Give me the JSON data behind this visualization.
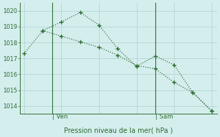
{
  "line1_x": [
    0,
    1,
    2,
    3,
    4,
    5,
    6,
    7,
    8,
    9,
    10
  ],
  "line1_y": [
    1017.3,
    1018.75,
    1019.3,
    1019.9,
    1019.1,
    1017.6,
    1016.5,
    1017.15,
    1016.6,
    1014.85,
    1013.7
  ],
  "line2_x": [
    1,
    2,
    3,
    4,
    5,
    6,
    7,
    8,
    9,
    10
  ],
  "line2_y": [
    1018.75,
    1018.4,
    1018.05,
    1017.7,
    1017.2,
    1016.55,
    1016.35,
    1015.5,
    1014.85,
    1013.7
  ],
  "color": "#2d6a2d",
  "bg_color": "#d4eeee",
  "grid_color": "#b8d8d8",
  "xlabel": "Pression niveau de la mer( hPa )",
  "ylim": [
    1013.5,
    1020.5
  ],
  "yticks": [
    1014,
    1015,
    1016,
    1017,
    1018,
    1019,
    1020
  ],
  "xlim": [
    -0.2,
    10.3
  ],
  "ven_x": 1.5,
  "sam_x": 7.0,
  "vline_x": [
    1.5,
    7.0
  ],
  "label_ven": "Ven",
  "label_sam": "Sam"
}
